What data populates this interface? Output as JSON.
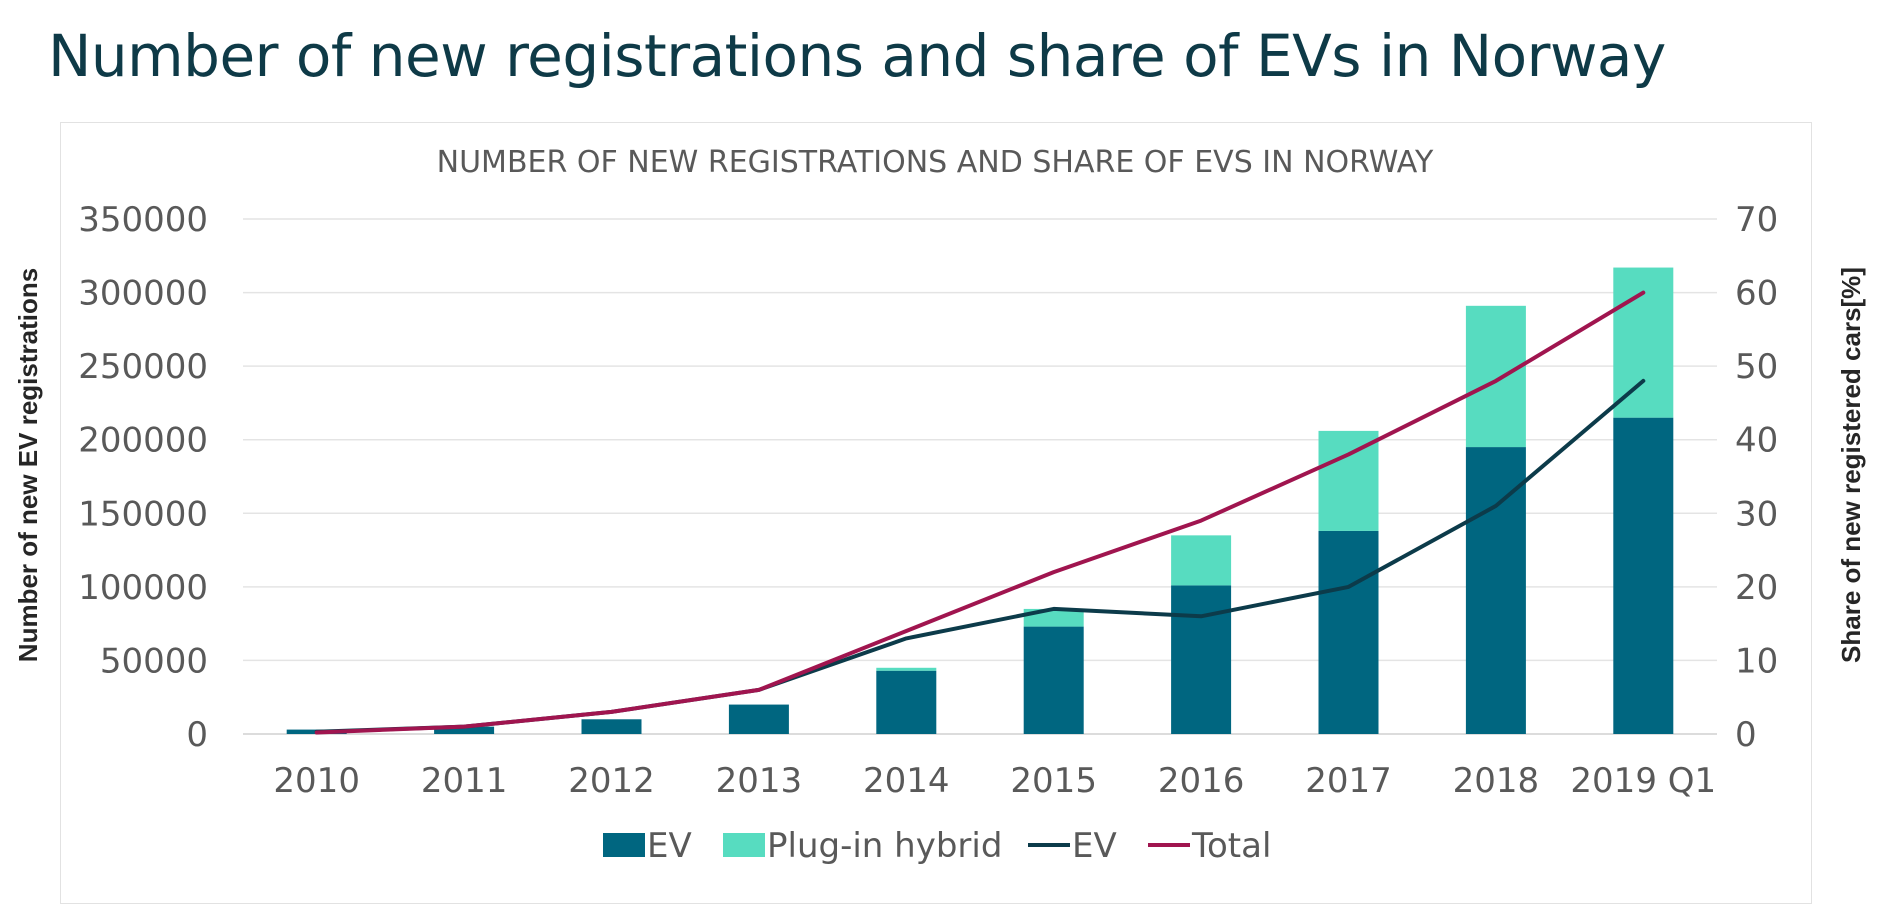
{
  "page": {
    "title": "Number of new registrations and share of EVs in Norway"
  },
  "chart_data": {
    "type": "bar",
    "title": "NUMBER OF NEW REGISTRATIONS AND SHARE OF EVS IN NORWAY",
    "categories": [
      "2010",
      "2011",
      "2012",
      "2013",
      "2014",
      "2015",
      "2016",
      "2017",
      "2018",
      "2019 Q1"
    ],
    "stacked": true,
    "series": [
      {
        "name": "EV",
        "kind": "bar",
        "axis": "left",
        "color": "#006680",
        "values": [
          3000,
          5000,
          10000,
          20000,
          43000,
          73000,
          101000,
          138000,
          195000,
          215000
        ]
      },
      {
        "name": "Plug-in hybrid",
        "kind": "bar",
        "axis": "left",
        "color": "#57dcc0",
        "values": [
          0,
          0,
          0,
          0,
          2000,
          12000,
          34000,
          68000,
          96000,
          102000
        ]
      },
      {
        "name": "EV",
        "kind": "line",
        "axis": "right",
        "color": "#0c3b4a",
        "values": [
          0.3,
          1,
          3,
          6,
          13,
          17,
          16,
          20,
          31,
          48
        ]
      },
      {
        "name": "Total",
        "kind": "line",
        "axis": "right",
        "color": "#a0154f",
        "values": [
          0.2,
          1,
          3,
          6,
          14,
          22,
          29,
          38,
          48,
          60
        ]
      }
    ],
    "ylabel": "Number of new EV registrations",
    "ylim": [
      0,
      350000
    ],
    "yticks": [
      "0",
      "50000",
      "100000",
      "150000",
      "200000",
      "250000",
      "300000",
      "350000"
    ],
    "y2label": "Share of new registered cars[%]",
    "y2lim": [
      0,
      70
    ],
    "y2ticks": [
      "0",
      "10",
      "20",
      "30",
      "40",
      "50",
      "60",
      "70"
    ],
    "grid": true,
    "legend_position": "bottom"
  }
}
